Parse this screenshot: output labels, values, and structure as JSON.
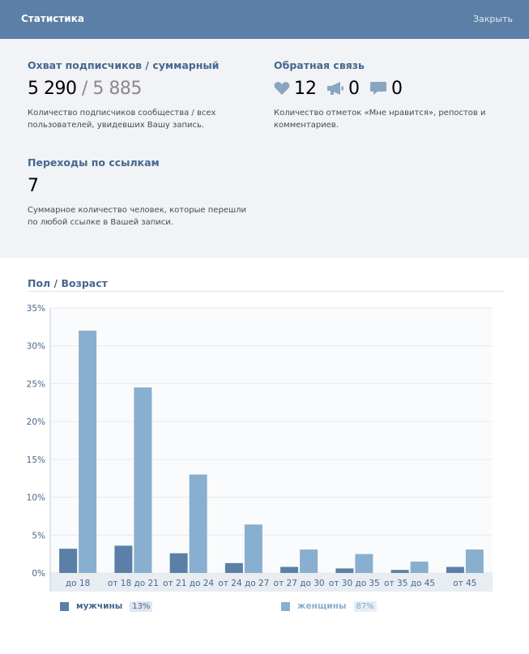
{
  "header": {
    "title": "Статистика",
    "close_label": "Закрыть"
  },
  "reach": {
    "title": "Охват подписчиков / суммарный",
    "subscribers": "5 290",
    "separator": "/",
    "total": "5 885",
    "description_line1": "Количество подписчиков сообщества / всех",
    "description_line2": "пользователей, увидевших Вашу запись."
  },
  "feedback": {
    "title": "Обратная связь",
    "likes": "12",
    "reposts": "0",
    "comments": "0",
    "icons": [
      "heart-icon",
      "megaphone-icon",
      "comment-icon"
    ],
    "description_line1": "Количество отметок «Мне нравится», репостов и",
    "description_line2": "комментариев."
  },
  "clicks": {
    "title": "Переходы по ссылкам",
    "value": "7",
    "description_line1": "Суммарное количество человек, которые перешли",
    "description_line2": "по любой ссылке в Вашей записи."
  },
  "chart_data": {
    "type": "bar",
    "title": "Пол / Возраст",
    "categories": [
      "до 18",
      "от 18 до 21",
      "от 21 до 24",
      "от 24 до 27",
      "от 27 до 30",
      "от 30 до 35",
      "от 35 до 45",
      "от 45"
    ],
    "series": [
      {
        "name": "мужчины",
        "share": "13%",
        "color": "#5b7fa6",
        "values": [
          3.2,
          3.6,
          2.6,
          1.3,
          0.8,
          0.6,
          0.4,
          0.8
        ]
      },
      {
        "name": "женщины",
        "share": "87%",
        "color": "#88afcf",
        "values": [
          32.0,
          24.5,
          13.0,
          6.4,
          3.1,
          2.5,
          1.5,
          3.1
        ]
      }
    ],
    "y_ticks": [
      "0%",
      "5%",
      "10%",
      "15%",
      "20%",
      "25%",
      "30%",
      "35%"
    ],
    "ylim": [
      0,
      35
    ],
    "grid": true,
    "legend_position": "bottom"
  }
}
